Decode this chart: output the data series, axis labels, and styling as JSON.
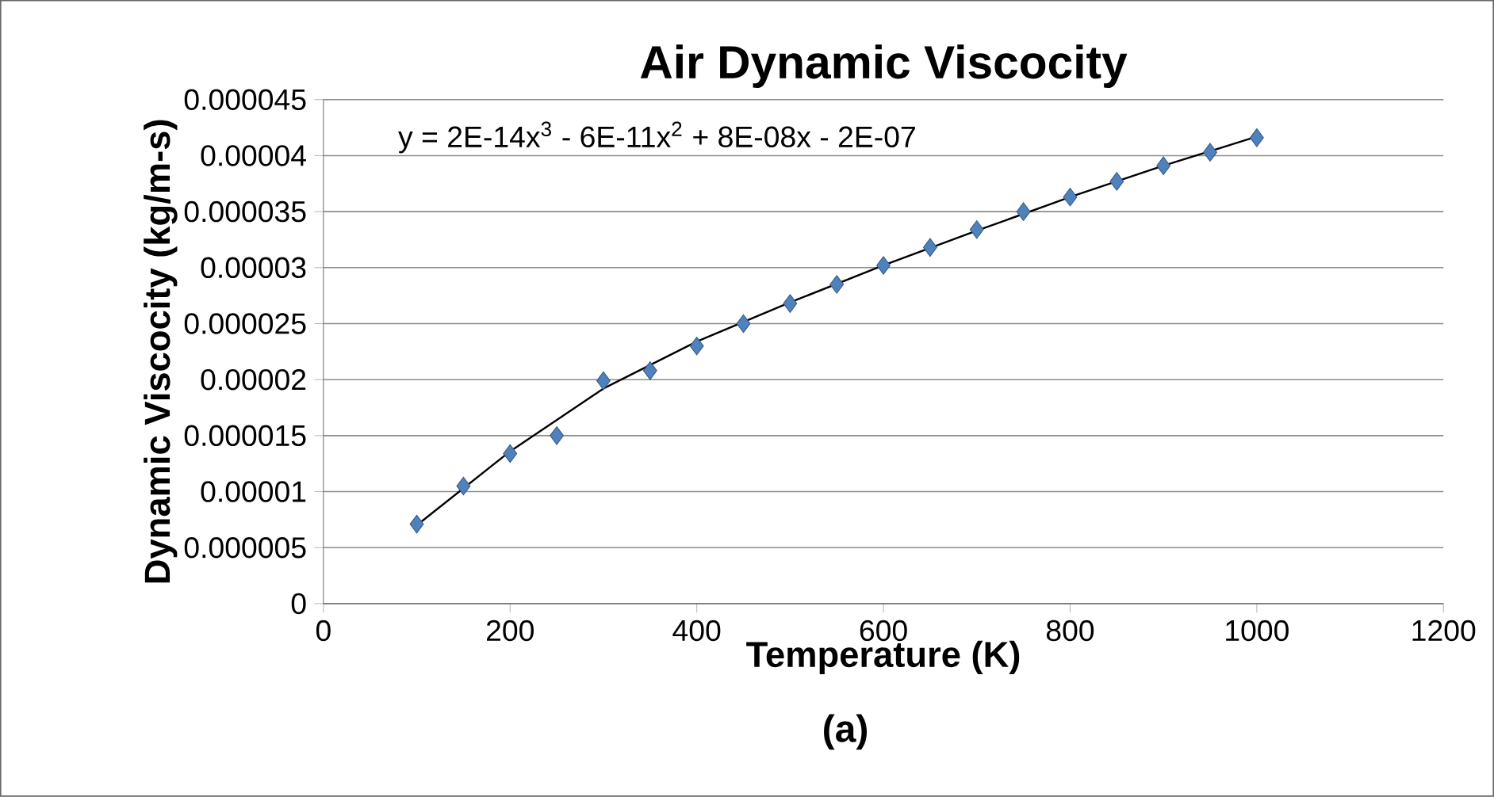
{
  "chart_data": {
    "type": "scatter",
    "title": "Air Dynamic Viscocity",
    "xlabel": "Temperature (K)",
    "ylabel": "Dynamic Viscocity (kg/m-s)",
    "annotations": [
      "y = 2E-14x$^{3}$ - 6E-11x$^{2}$ + 8E-08x - 2E-07",
      "(a)"
    ],
    "x": [
      100,
      150,
      200,
      250,
      300,
      350,
      400,
      450,
      500,
      550,
      600,
      650,
      700,
      750,
      800,
      850,
      900,
      950,
      1000
    ],
    "series": [
      {
        "marker": "diamond",
        "color": "#4f81bd",
        "values": [
          7.1e-06,
          1.05e-05,
          1.34e-05,
          1.5e-05,
          1.99e-05,
          2.08e-05,
          2.3e-05,
          2.5e-05,
          2.68e-05,
          2.85e-05,
          3.02e-05,
          3.18e-05,
          3.34e-05,
          3.5e-05,
          3.63e-05,
          3.77e-05,
          3.91e-05,
          4.03e-05,
          4.16e-05
        ]
      },
      {
        "type": "line",
        "marker": "none",
        "color": "#000000",
        "x": [
          100,
          200,
          300,
          400,
          500,
          600,
          700,
          800,
          900,
          1000
        ],
        "values": [
          7e-06,
          1.36e-05,
          1.92e-05,
          2.34e-05,
          2.69e-05,
          3.02e-05,
          3.33e-05,
          3.63e-05,
          3.91e-05,
          4.17e-05
        ]
      }
    ],
    "xlim": [
      0,
      1200
    ],
    "xticks": [
      0,
      200,
      400,
      600,
      800,
      1000,
      1200
    ],
    "ylim": [
      0,
      4.5e-05
    ],
    "yticks": [
      {
        "value": 0,
        "label": "0"
      },
      {
        "value": 5e-06,
        "label": "0.000005"
      },
      {
        "value": 1e-05,
        "label": "0.00001"
      },
      {
        "value": 1.5e-05,
        "label": "0.000015"
      },
      {
        "value": 2e-05,
        "label": "0.00002"
      },
      {
        "value": 2.5e-05,
        "label": "0.000025"
      },
      {
        "value": 3e-05,
        "label": "0.00003"
      },
      {
        "value": 3.5e-05,
        "label": "0.000035"
      },
      {
        "value": 4e-05,
        "label": "0.00004"
      },
      {
        "value": 4.5e-05,
        "label": "0.000045"
      }
    ],
    "grid": "y",
    "legend": false
  }
}
